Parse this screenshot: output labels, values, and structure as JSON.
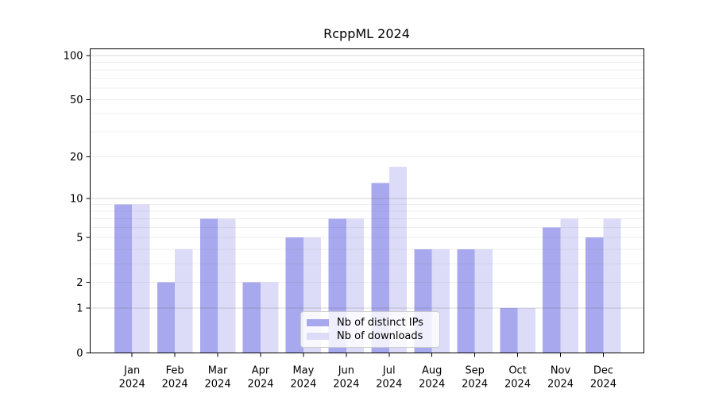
{
  "chart_data": {
    "type": "bar",
    "title": "RcppML 2024",
    "months": [
      "Jan",
      "Feb",
      "Mar",
      "Apr",
      "May",
      "Jun",
      "Jul",
      "Aug",
      "Sep",
      "Oct",
      "Nov",
      "Dec"
    ],
    "year": "2024",
    "categories": [
      "Jan 2024",
      "Feb 2024",
      "Mar 2024",
      "Apr 2024",
      "May 2024",
      "Jun 2024",
      "Jul 2024",
      "Aug 2024",
      "Sep 2024",
      "Oct 2024",
      "Nov 2024",
      "Dec 2024"
    ],
    "series": [
      {
        "name": "Nb of distinct IPs",
        "color": "#a8a8ee",
        "values": [
          9,
          2,
          7,
          2,
          5,
          7,
          13,
          4,
          4,
          1,
          6,
          5
        ]
      },
      {
        "name": "Nb of downloads",
        "color": "#dcdcf8",
        "values": [
          9,
          4,
          7,
          2,
          5,
          7,
          17,
          4,
          4,
          1,
          7,
          7
        ]
      }
    ],
    "yscale": "log1p",
    "ylim": [
      0,
      111
    ],
    "y_ticks": [
      0,
      1,
      2,
      5,
      10,
      20,
      50,
      100
    ],
    "y_major_gridlines": [
      1,
      10,
      100
    ],
    "y_minor_gridlines": [
      2,
      3,
      4,
      5,
      6,
      7,
      8,
      9,
      20,
      30,
      40,
      50,
      60,
      70,
      80,
      90
    ],
    "grid": true,
    "legend_position": "inside-bottom-center",
    "axis_color": "#000000",
    "major_grid_color": "#c8c8c8",
    "minor_grid_color": "#ececec"
  }
}
